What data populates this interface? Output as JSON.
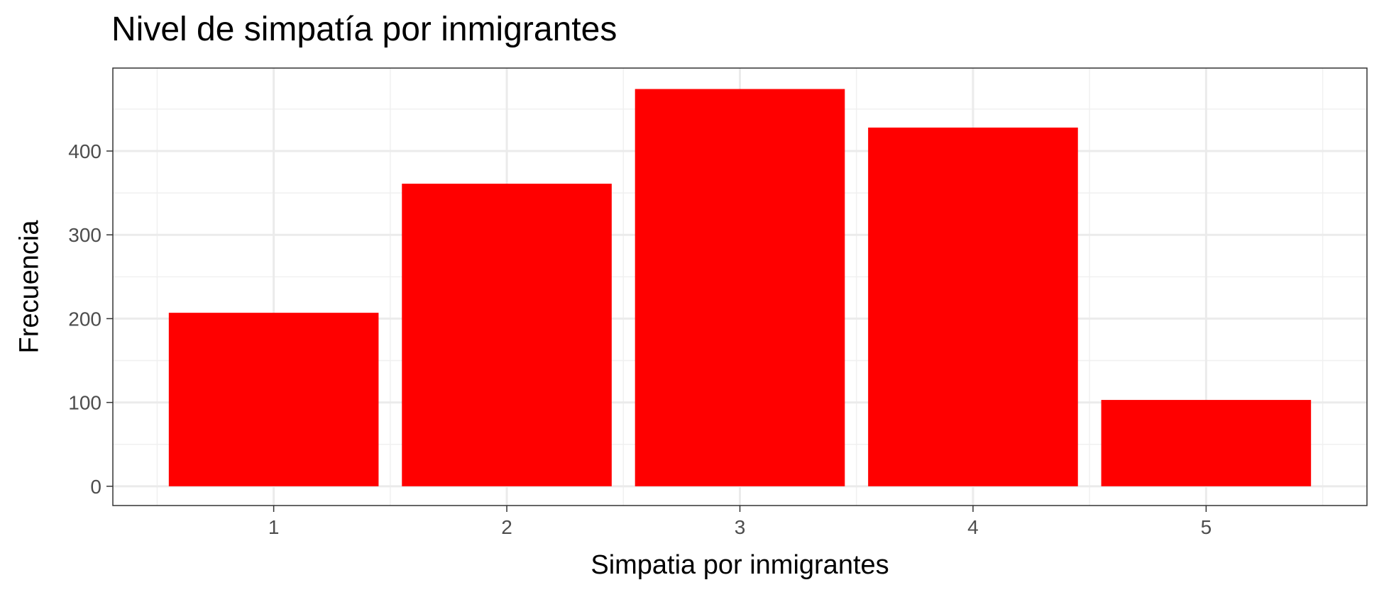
{
  "chart_data": {
    "type": "bar",
    "title": "Nivel de simpatía por inmigrantes",
    "xlabel": "Simpatia por inmigrantes",
    "ylabel": "Frecuencia",
    "categories": [
      "1",
      "2",
      "3",
      "4",
      "5"
    ],
    "values": [
      207,
      361,
      474,
      428,
      103
    ],
    "x_range": [
      0.31,
      5.69
    ],
    "ylim": [
      -23,
      499
    ],
    "y_ticks": [
      0,
      100,
      200,
      300,
      400
    ],
    "y_minor_ticks": [
      50,
      150,
      250,
      350,
      450
    ],
    "bar_color": "#ff0000",
    "grid": true,
    "legend": "none"
  }
}
